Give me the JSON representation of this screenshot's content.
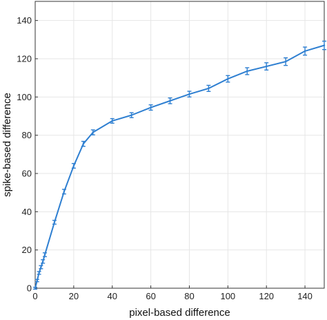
{
  "chart_data": {
    "type": "line",
    "title": "",
    "xlabel": "pixel-based difference",
    "ylabel": "spike-based difference",
    "xlim": [
      0,
      150
    ],
    "ylim": [
      0,
      150
    ],
    "xticks": [
      "0",
      "20",
      "40",
      "60",
      "80",
      "100",
      "120",
      "140"
    ],
    "yticks": [
      "0",
      "20",
      "40",
      "60",
      "80",
      "100",
      "120",
      "140"
    ],
    "grid": true,
    "colors": {
      "line": "#2e7fd1",
      "grid": "#e6e6e6",
      "axis": "#333333"
    },
    "series": [
      {
        "x": [
          0,
          1,
          2,
          3,
          4,
          5,
          10,
          15,
          20,
          25,
          30,
          40,
          50,
          60,
          70,
          80,
          90,
          100,
          110,
          120,
          130,
          140,
          150
        ],
        "y": [
          0,
          4,
          8,
          11,
          14,
          17.5,
          34.5,
          50.5,
          64,
          75.5,
          81.5,
          87.5,
          90.5,
          94.5,
          98,
          101.5,
          104.5,
          109.5,
          113.5,
          116,
          118.5,
          124,
          127
        ],
        "error": [
          0.5,
          0.6,
          0.7,
          0.8,
          0.9,
          1.0,
          1.0,
          1.2,
          1.2,
          1.3,
          1.3,
          1.2,
          1.3,
          1.4,
          1.5,
          1.5,
          1.6,
          1.7,
          1.8,
          1.9,
          2.0,
          2.1,
          2.2
        ]
      }
    ]
  }
}
